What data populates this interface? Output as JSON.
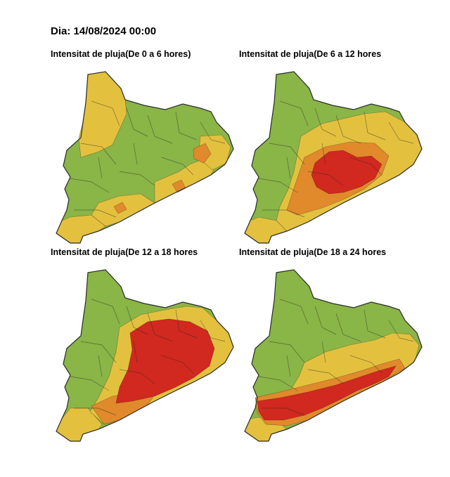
{
  "date_label": "Dia: 14/08/2024 00:00",
  "colors": {
    "low": "#8ab547",
    "moderate": "#e3c13f",
    "high": "#e08a2c",
    "very_high": "#d1281f",
    "border": "#2b2b2b"
  },
  "maps": [
    {
      "title": "Intensitat de pluja(De 0 a 6 hores)",
      "base_level": "low",
      "zones": [
        {
          "region": "north-west",
          "level": "moderate"
        },
        {
          "region": "south-tip",
          "level": "moderate"
        },
        {
          "region": "central-coast",
          "level": "moderate"
        },
        {
          "region": "south-coast",
          "level": "moderate"
        },
        {
          "region": "north-east-coast",
          "level": "moderate"
        },
        {
          "region": "east-patches",
          "level": "high"
        },
        {
          "region": "coastal-spots",
          "level": "high"
        }
      ]
    },
    {
      "title": "Intensitat de pluja(De 6 a 12 hores",
      "base_level": "low",
      "zones": [
        {
          "region": "central-east",
          "level": "moderate"
        },
        {
          "region": "south-tip",
          "level": "moderate"
        },
        {
          "region": "central-band",
          "level": "high"
        },
        {
          "region": "central-core",
          "level": "very_high"
        }
      ]
    },
    {
      "title": "Intensitat de pluja(De 12 a 18 hores",
      "base_level": "low",
      "zones": [
        {
          "region": "south-tip",
          "level": "moderate"
        },
        {
          "region": "central-east",
          "level": "moderate"
        },
        {
          "region": "coastal-band",
          "level": "high"
        },
        {
          "region": "central-mass",
          "level": "very_high"
        }
      ]
    },
    {
      "title": "Intensitat de pluja(De 18 a 24 hores",
      "base_level": "low",
      "zones": [
        {
          "region": "central-north-east",
          "level": "moderate"
        },
        {
          "region": "south-tip",
          "level": "moderate"
        },
        {
          "region": "coastal-band",
          "level": "high"
        },
        {
          "region": "coastal-strip",
          "level": "very_high"
        }
      ]
    }
  ]
}
